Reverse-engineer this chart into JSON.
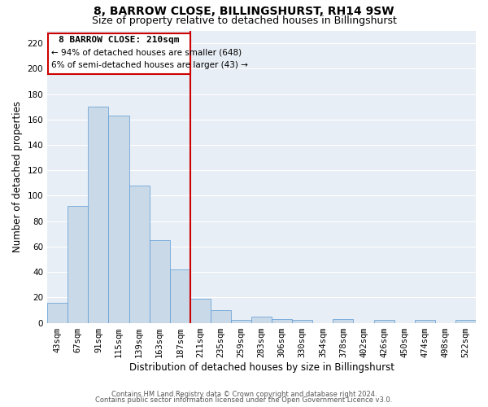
{
  "title": "8, BARROW CLOSE, BILLINGSHURST, RH14 9SW",
  "subtitle": "Size of property relative to detached houses in Billingshurst",
  "xlabel": "Distribution of detached houses by size in Billingshurst",
  "ylabel": "Number of detached properties",
  "categories": [
    "43sqm",
    "67sqm",
    "91sqm",
    "115sqm",
    "139sqm",
    "163sqm",
    "187sqm",
    "211sqm",
    "235sqm",
    "259sqm",
    "283sqm",
    "306sqm",
    "330sqm",
    "354sqm",
    "378sqm",
    "402sqm",
    "426sqm",
    "450sqm",
    "474sqm",
    "498sqm",
    "522sqm"
  ],
  "values": [
    16,
    92,
    170,
    163,
    108,
    65,
    42,
    19,
    10,
    2,
    5,
    3,
    2,
    0,
    3,
    0,
    2,
    0,
    2,
    0,
    2
  ],
  "bar_color": "#c9d9e8",
  "bar_edge_color": "#5b9bd5",
  "property_label": "8 BARROW CLOSE: 210sqm",
  "annotation_line1": "← 94% of detached houses are smaller (648)",
  "annotation_line2": "6% of semi-detached houses are larger (43) →",
  "line_color": "#cc0000",
  "ylim": [
    0,
    230
  ],
  "yticks": [
    0,
    20,
    40,
    60,
    80,
    100,
    120,
    140,
    160,
    180,
    200,
    220
  ],
  "footer1": "Contains HM Land Registry data © Crown copyright and database right 2024.",
  "footer2": "Contains public sector information licensed under the Open Government Licence v3.0.",
  "bg_color": "#e8eef5",
  "title_fontsize": 10,
  "subtitle_fontsize": 9,
  "axis_label_fontsize": 8.5,
  "tick_fontsize": 7.5,
  "footer_fontsize": 6,
  "prop_bar_index": 7
}
